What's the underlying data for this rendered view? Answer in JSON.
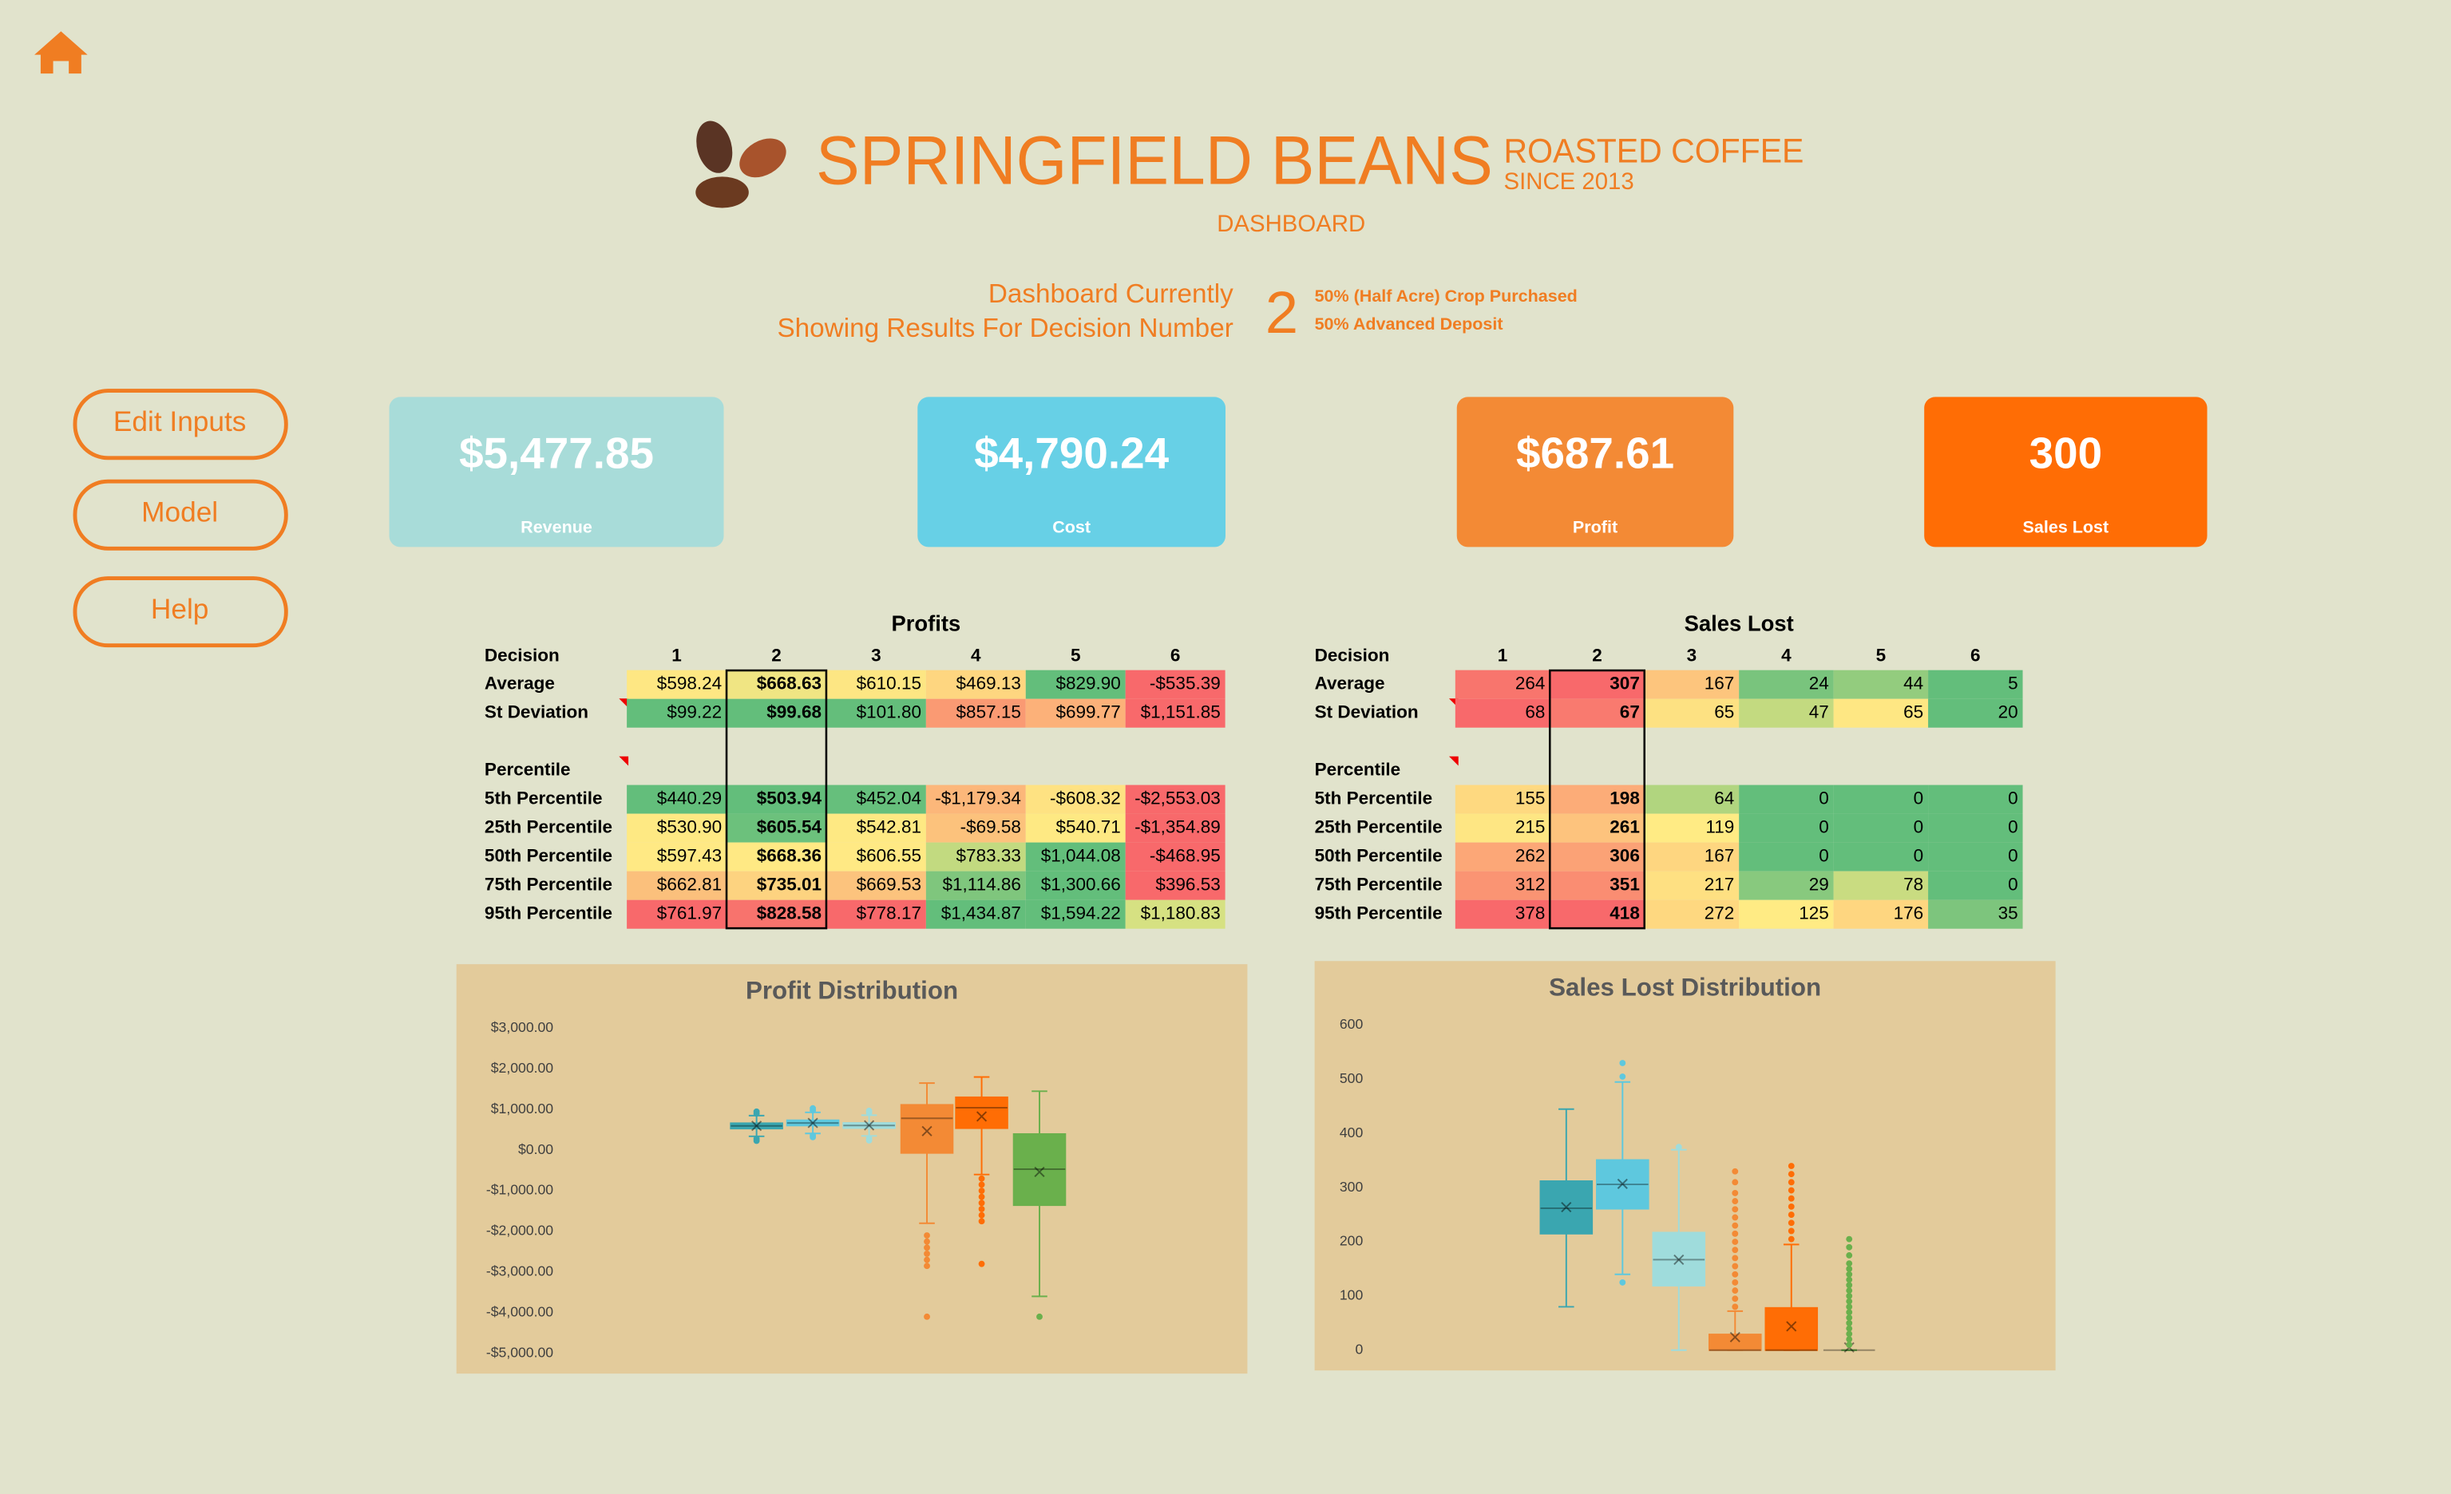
{
  "header": {
    "brand": "SPRINGFIELD BEANS",
    "tagline_1": "ROASTED COFFEE",
    "tagline_2": "SINCE 2013",
    "subtitle": "DASHBOARD"
  },
  "decision": {
    "label_1": "Dashboard Currently",
    "label_2": "Showing Results For Decision Number",
    "number": "2",
    "detail_1": "50% (Half Acre) Crop Purchased",
    "detail_2": "50% Advanced Deposit"
  },
  "nav": [
    "Edit Inputs",
    "Model",
    "Help"
  ],
  "kpis": [
    {
      "value": "$5,477.85",
      "label": "Revenue",
      "color": "#a8dcd9"
    },
    {
      "value": "$4,790.24",
      "label": "Cost",
      "color": "#67d0e6"
    },
    {
      "value": "$687.61",
      "label": "Profit",
      "color": "#f38a35"
    },
    {
      "value": "300",
      "label": "Sales Lost",
      "color": "#ff6d05"
    }
  ],
  "tables": [
    {
      "title": "Profits",
      "header_label": "Decision",
      "columns": [
        "1",
        "2",
        "3",
        "4",
        "5",
        "6"
      ],
      "summary_rows": [
        {
          "label": "Average",
          "values": [
            "$598.24",
            "$668.63",
            "$610.15",
            "$469.13",
            "$829.90",
            "-$535.39"
          ],
          "colors": [
            "#fee783",
            "#f0e583",
            "#fde683",
            "#fed680",
            "#63be7b",
            "#f8696b"
          ]
        },
        {
          "label": "St Deviation",
          "values": [
            "$99.22",
            "$99.68",
            "$101.80",
            "$857.15",
            "$699.77",
            "$1,151.85"
          ],
          "colors": [
            "#63be7b",
            "#63be7b",
            "#64be7b",
            "#fa9a73",
            "#fcb179",
            "#f8696b"
          ]
        }
      ],
      "section_label": "Percentile",
      "percentile_rows": [
        {
          "label": "5th Percentile",
          "values": [
            "$440.29",
            "$503.94",
            "$452.04",
            "-$1,179.34",
            "-$608.32",
            "-$2,553.03"
          ],
          "colors": [
            "#63be7b",
            "#63be7b",
            "#66bf7c",
            "#fcb77a",
            "#fee282",
            "#f8696b"
          ]
        },
        {
          "label": "25th Percentile",
          "values": [
            "$530.90",
            "$605.54",
            "$542.81",
            "-$69.58",
            "$540.71",
            "-$1,354.89"
          ],
          "colors": [
            "#fee983",
            "#6cc17c",
            "#fee983",
            "#fcc27c",
            "#fee983",
            "#f8696b"
          ]
        },
        {
          "label": "50th Percentile",
          "values": [
            "$597.43",
            "$668.36",
            "$606.55",
            "$783.33",
            "$1,044.08",
            "-$468.95"
          ],
          "colors": [
            "#ffe984",
            "#ffe984",
            "#ffe984",
            "#c2da80",
            "#63be7b",
            "#f8696b"
          ]
        },
        {
          "label": "75th Percentile",
          "values": [
            "$662.81",
            "$735.01",
            "$669.53",
            "$1,114.86",
            "$1,300.66",
            "$396.53"
          ],
          "colors": [
            "#fbc07c",
            "#fdd380",
            "#fcc37d",
            "#7fc67d",
            "#63be7b",
            "#f8696b"
          ]
        },
        {
          "label": "95th Percentile",
          "values": [
            "$761.97",
            "$828.58",
            "$778.17",
            "$1,434.87",
            "$1,594.22",
            "$1,180.83"
          ],
          "colors": [
            "#f8696b",
            "#f8736d",
            "#f8696b",
            "#63be7b",
            "#63be7b",
            "#d6e182"
          ]
        }
      ]
    },
    {
      "title": "Sales Lost",
      "header_label": "Decision",
      "columns": [
        "1",
        "2",
        "3",
        "4",
        "5",
        "6"
      ],
      "summary_rows": [
        {
          "label": "Average",
          "values": [
            "264",
            "307",
            "167",
            "24",
            "44",
            "5"
          ],
          "colors": [
            "#f8756d",
            "#f8696b",
            "#fdc57d",
            "#79c47d",
            "#93cc7e",
            "#63be7b"
          ]
        },
        {
          "label": "St Deviation",
          "values": [
            "68",
            "67",
            "65",
            "47",
            "65",
            "20"
          ],
          "colors": [
            "#f8696b",
            "#f97a6f",
            "#fde182",
            "#c3da80",
            "#fee783",
            "#63be7b"
          ]
        }
      ],
      "section_label": "Percentile",
      "percentile_rows": [
        {
          "label": "5th Percentile",
          "values": [
            "155",
            "198",
            "64",
            "0",
            "0",
            "0"
          ],
          "colors": [
            "#fed980",
            "#fcac78",
            "#b1d57f",
            "#63be7b",
            "#63be7b",
            "#63be7b"
          ]
        },
        {
          "label": "25th Percentile",
          "values": [
            "215",
            "261",
            "119",
            "0",
            "0",
            "0"
          ],
          "colors": [
            "#fee683",
            "#fdc37d",
            "#ffeb84",
            "#63be7b",
            "#63be7b",
            "#63be7b"
          ]
        },
        {
          "label": "50th Percentile",
          "values": [
            "262",
            "306",
            "167",
            "0",
            "0",
            "0"
          ],
          "colors": [
            "#fca777",
            "#fba276",
            "#fed680",
            "#63be7b",
            "#63be7b",
            "#63be7b"
          ]
        },
        {
          "label": "75th Percentile",
          "values": [
            "312",
            "351",
            "217",
            "29",
            "78",
            "0"
          ],
          "colors": [
            "#fa9473",
            "#fa8d72",
            "#fee082",
            "#88c97e",
            "#c9dc81",
            "#63be7b"
          ]
        },
        {
          "label": "95th Percentile",
          "values": [
            "378",
            "418",
            "272",
            "125",
            "176",
            "35"
          ],
          "colors": [
            "#f8696b",
            "#f8696b",
            "#fed880",
            "#ffeb84",
            "#fed680",
            "#7dc57d"
          ]
        }
      ]
    }
  ],
  "chart_data": [
    {
      "type": "box",
      "title": "Profit Distribution",
      "ylim": [
        -5000,
        3000
      ],
      "yticks": [
        {
          "value": 3000,
          "label": "$3,000.00"
        },
        {
          "value": 2000,
          "label": "$2,000.00"
        },
        {
          "value": 1000,
          "label": "$1,000.00"
        },
        {
          "value": 0,
          "label": "$0.00"
        },
        {
          "value": -1000,
          "label": "-$1,000.00"
        },
        {
          "value": -2000,
          "label": "-$2,000.00"
        },
        {
          "value": -3000,
          "label": "-$3,000.00"
        },
        {
          "value": -4000,
          "label": "-$4,000.00"
        },
        {
          "value": -5000,
          "label": "-$5,000.00"
        }
      ],
      "series": [
        {
          "color": "#3aa6b0",
          "whisker_low": 340,
          "q1": 530.9,
          "median": 597.43,
          "q3": 662.81,
          "whisker_high": 850,
          "mean": 598.24,
          "outliers": [
            900,
            950,
            280,
            230
          ]
        },
        {
          "color": "#5ec8de",
          "whisker_low": 410,
          "q1": 605.54,
          "median": 668.36,
          "q3": 735.01,
          "whisker_high": 930,
          "mean": 668.63,
          "outliers": [
            980,
            1030,
            360,
            320
          ]
        },
        {
          "color": "#9fdcdc",
          "whisker_low": 350,
          "q1": 542.81,
          "median": 606.55,
          "q3": 669.53,
          "whisker_high": 860,
          "mean": 610.15,
          "outliers": [
            920,
            970,
            290,
            240
          ]
        },
        {
          "color": "#f38a35",
          "whisker_low": -1800,
          "q1": -69.58,
          "median": 783.33,
          "q3": 1114.86,
          "whisker_high": 1650,
          "mean": 469.13,
          "outliers": [
            -2100,
            -2250,
            -2400,
            -2550,
            -2700,
            -2850,
            -4100
          ]
        },
        {
          "color": "#ff6d05",
          "whisker_low": -600,
          "q1": 540.71,
          "median": 1044.08,
          "q3": 1300.66,
          "whisker_high": 1800,
          "mean": 829.9,
          "outliers": [
            -700,
            -850,
            -1000,
            -1150,
            -1300,
            -1450,
            -1600,
            -1750,
            -2800
          ]
        },
        {
          "color": "#6ab04c",
          "whisker_low": -3600,
          "q1": -1354.89,
          "median": -468.95,
          "q3": 396.53,
          "whisker_high": 1450,
          "mean": -535.39,
          "outliers": [
            -4100
          ]
        }
      ]
    },
    {
      "type": "box",
      "title": "Sales Lost Distribution",
      "ylim": [
        0,
        600
      ],
      "yticks": [
        0,
        100,
        200,
        300,
        400,
        500,
        600
      ],
      "series": [
        {
          "color": "#3aa6b0",
          "whisker_low": 80,
          "q1": 215,
          "median": 262,
          "q3": 312,
          "whisker_high": 445,
          "mean": 264,
          "outliers": []
        },
        {
          "color": "#5ec8de",
          "whisker_low": 140,
          "q1": 261,
          "median": 306,
          "q3": 351,
          "whisker_high": 495,
          "mean": 307,
          "outliers": [
            125,
            505,
            530
          ]
        },
        {
          "color": "#9fdcdc",
          "whisker_low": 0,
          "q1": 119,
          "median": 167,
          "q3": 217,
          "whisker_high": 370,
          "mean": 167,
          "outliers": [
            375
          ]
        },
        {
          "color": "#f38a35",
          "whisker_low": 0,
          "q1": 0,
          "median": 0,
          "q3": 29,
          "whisker_high": 72,
          "mean": 24,
          "outliers": [
            80,
            95,
            110,
            125,
            140,
            155,
            170,
            185,
            200,
            215,
            230,
            245,
            260,
            275,
            290,
            310,
            330
          ]
        },
        {
          "color": "#ff6d05",
          "whisker_low": 0,
          "q1": 0,
          "median": 0,
          "q3": 78,
          "whisker_high": 195,
          "mean": 44,
          "outliers": [
            205,
            220,
            235,
            250,
            265,
            280,
            295,
            310,
            325,
            340
          ]
        },
        {
          "color": "#6ab04c",
          "whisker_low": 0,
          "q1": 0,
          "median": 0,
          "q3": 0,
          "whisker_high": 0,
          "mean": 5,
          "outliers": [
            10,
            20,
            30,
            40,
            50,
            60,
            70,
            80,
            90,
            100,
            110,
            120,
            130,
            140,
            150,
            160,
            175,
            190,
            205
          ]
        }
      ]
    }
  ]
}
